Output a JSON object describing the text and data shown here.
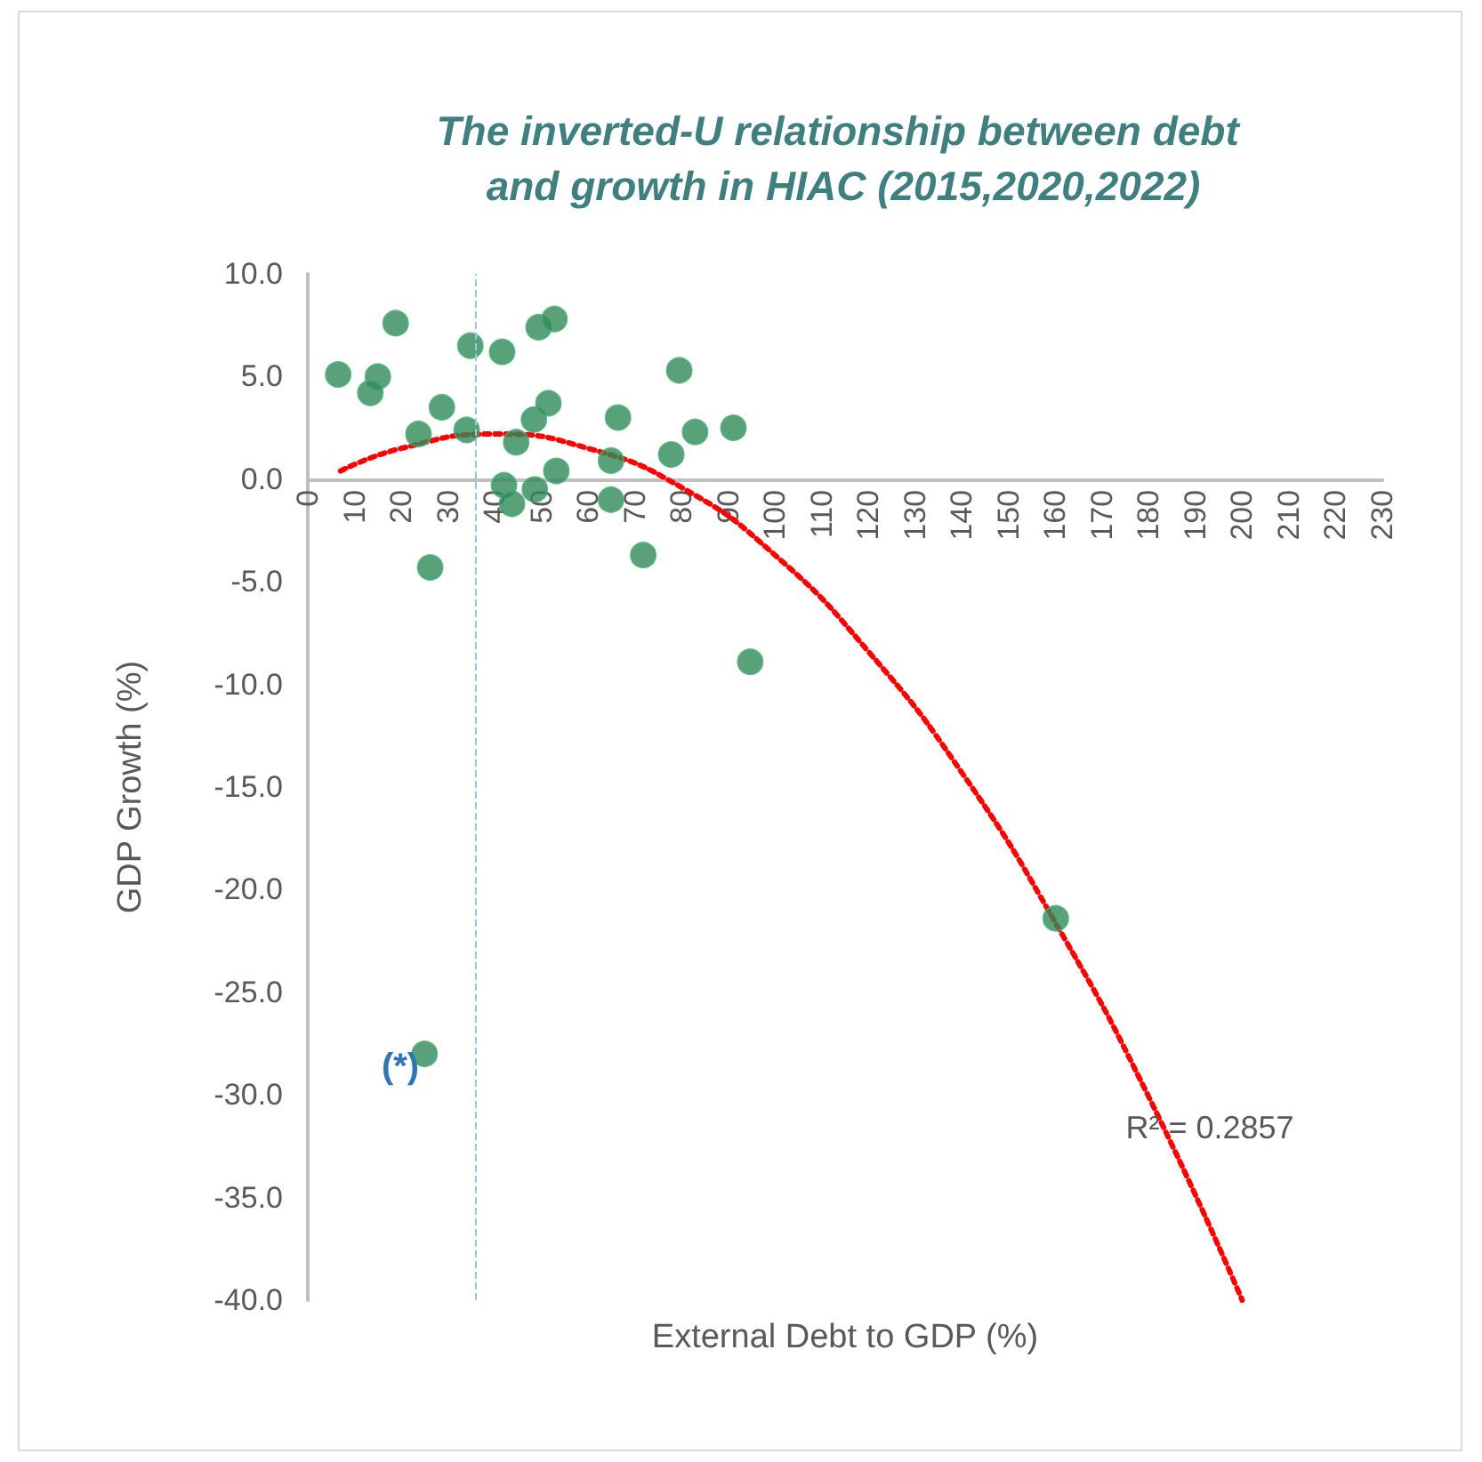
{
  "chart_data": {
    "type": "scatter",
    "title": "The inverted-U relationship between debt and growth in HIAC (2015,2020,2022)",
    "xlabel": "External Debt to GDP (%)",
    "ylabel": "GDP Growth (%)",
    "series": [
      {
        "color": "#2f8a57",
        "x": [
          6.5,
          18.8,
          15.0,
          13.4,
          23.7,
          28.7,
          26.2,
          34.8,
          34.0,
          41.6,
          42.0,
          43.7,
          44.6,
          48.4,
          49.4,
          52.8,
          51.5,
          48.6,
          53.2,
          64.9,
          64.9,
          66.4,
          71.8,
          77.8,
          79.5,
          82.9,
          91.1,
          94.7,
          160.1,
          25.0
        ],
        "values": [
          5.1,
          7.6,
          5.0,
          4.2,
          2.2,
          3.5,
          -4.3,
          6.5,
          2.4,
          6.2,
          -0.3,
          -1.2,
          1.8,
          2.9,
          7.4,
          7.8,
          3.7,
          -0.5,
          0.4,
          0.9,
          -1.0,
          3.0,
          -3.7,
          1.2,
          5.3,
          2.3,
          2.5,
          -8.9,
          -21.4,
          -28.0
        ]
      },
      {
        "type": "line",
        "color": "#ff0000",
        "line_style": "dotted",
        "marker": "none",
        "x": [
          7,
          20,
          40,
          60,
          80,
          100,
          120,
          140,
          160,
          180,
          200
        ],
        "values": [
          0.4,
          1.5,
          2.2,
          1.5,
          -0.4,
          -3.7,
          -8.4,
          -14.3,
          -21.6,
          -30.1,
          -40.0
        ]
      }
    ],
    "marker": "circle",
    "xlim": [
      0,
      230
    ],
    "xticks": [
      0,
      10,
      20,
      30,
      40,
      50,
      60,
      70,
      80,
      90,
      100,
      110,
      120,
      130,
      140,
      150,
      160,
      170,
      180,
      190,
      200,
      210,
      220,
      230
    ],
    "ylim": [
      -40,
      10
    ],
    "yticks": [
      {
        "value": -40,
        "label": "-40.0"
      },
      {
        "value": -35,
        "label": "-35.0"
      },
      {
        "value": -30,
        "label": "-30.0"
      },
      {
        "value": -25,
        "label": "-25.0"
      },
      {
        "value": -20,
        "label": "-20.0"
      },
      {
        "value": -15,
        "label": "-15.0"
      },
      {
        "value": -10,
        "label": "-10.0"
      },
      {
        "value": -5,
        "label": "-5.0"
      },
      {
        "value": 0,
        "label": "0.0"
      },
      {
        "value": 5,
        "label": "5.0"
      },
      {
        "value": 10,
        "label": "10.0"
      }
    ],
    "ref_lines": [
      {
        "axis": "x",
        "value": 36,
        "label": null,
        "color": "#9dc3e6",
        "line_style": "dashed"
      }
    ],
    "annotations": [
      "(*)",
      "R² = 0.2857"
    ],
    "grid": false
  }
}
